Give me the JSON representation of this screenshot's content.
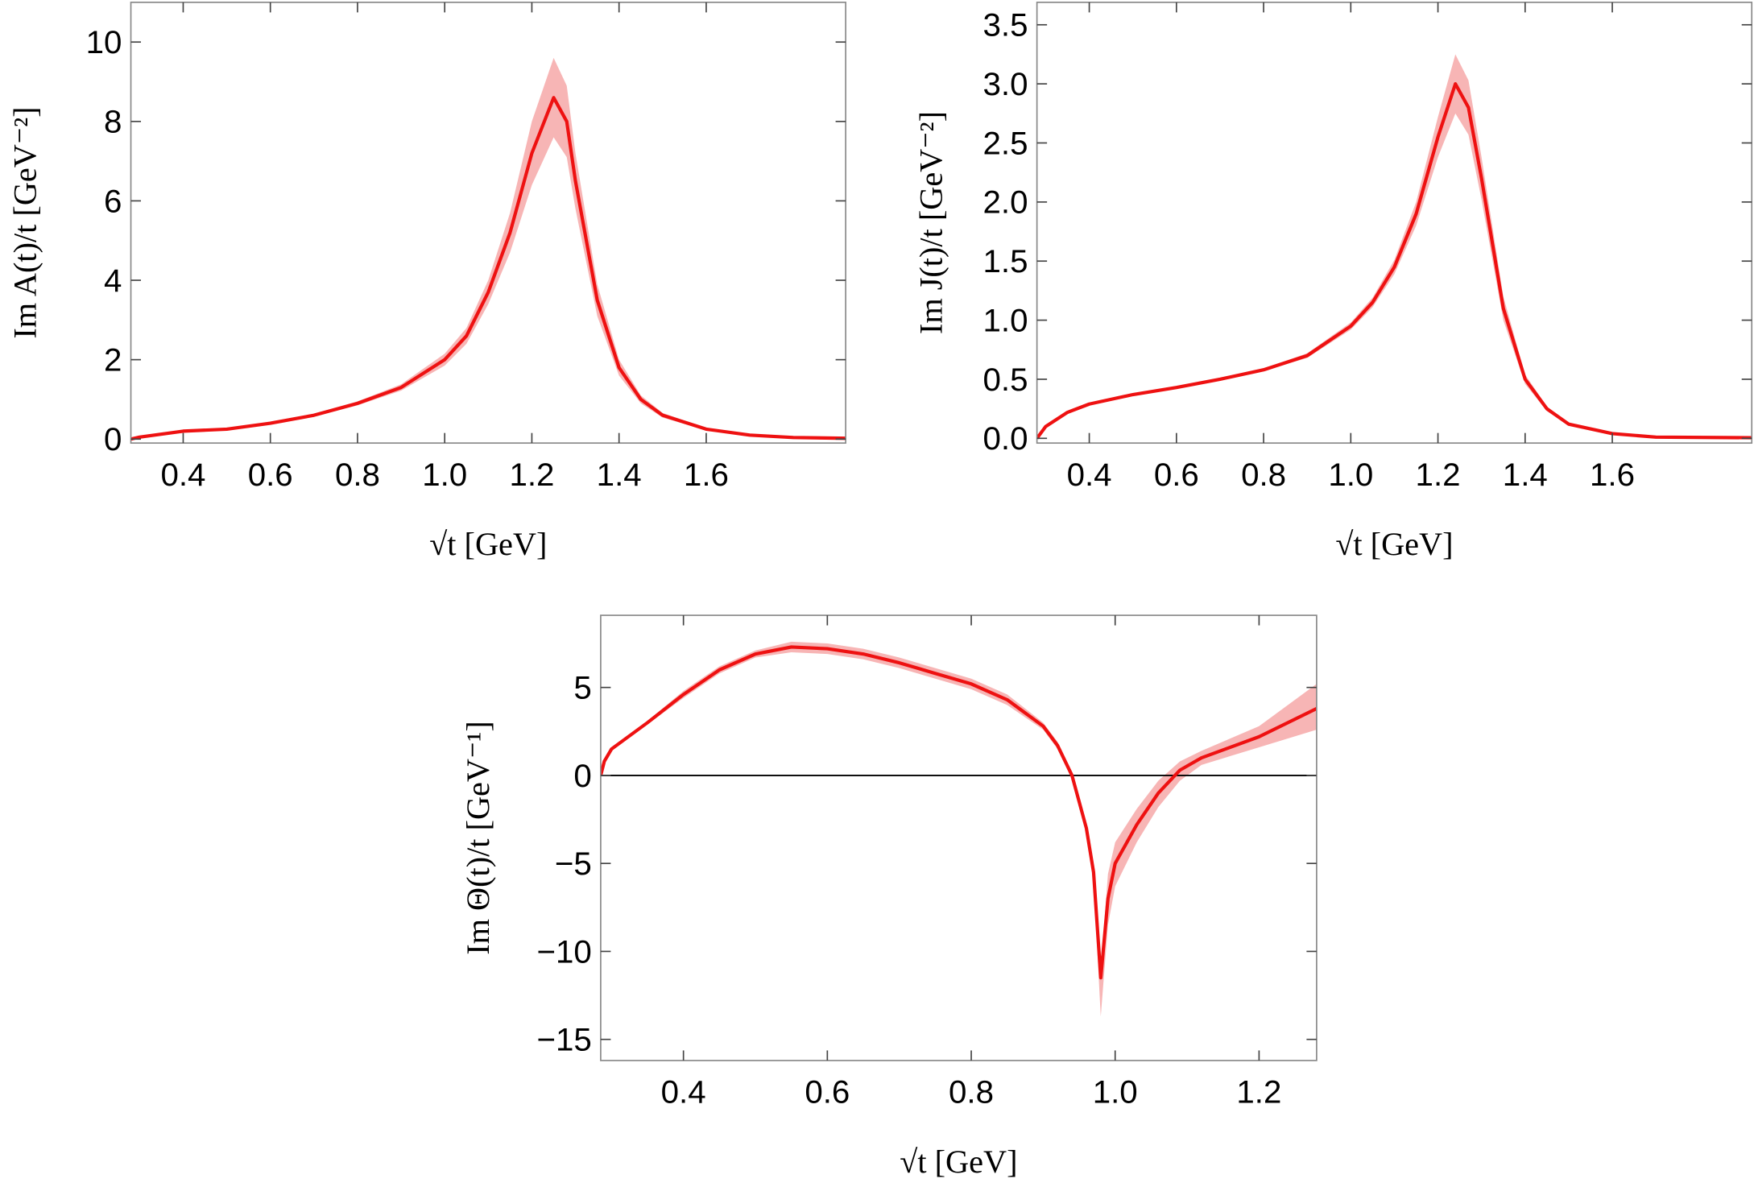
{
  "chart_data": [
    {
      "type": "line",
      "xlabel": "√t [GeV]",
      "ylabel": "Im A(t)/t [GeV⁻²]",
      "xlim": [
        0.28,
        1.92
      ],
      "ylim": [
        -0.1,
        11
      ],
      "xticks": [
        0.4,
        0.6,
        0.8,
        {
          "value": 1,
          "label": "1.0"
        },
        1.2,
        1.4,
        1.6
      ],
      "yticks": [
        0,
        2,
        4,
        6,
        8,
        10
      ],
      "x": [
        0.28,
        0.3,
        0.4,
        0.5,
        0.6,
        0.7,
        0.8,
        0.9,
        1.0,
        1.05,
        1.1,
        1.15,
        1.2,
        1.25,
        1.28,
        1.3,
        1.35,
        1.4,
        1.45,
        1.5,
        1.6,
        1.7,
        1.8,
        1.92
      ],
      "series": [
        {
          "color": "#ee1111",
          "band_color": "#f7b5b5",
          "values": [
            0,
            0.05,
            0.2,
            0.25,
            0.4,
            0.6,
            0.9,
            1.3,
            2.0,
            2.6,
            3.7,
            5.2,
            7.2,
            8.6,
            8.0,
            6.5,
            3.5,
            1.8,
            1.0,
            0.6,
            0.25,
            0.1,
            0.04,
            0.02
          ],
          "lower": [
            0,
            0.04,
            0.18,
            0.23,
            0.37,
            0.56,
            0.85,
            1.22,
            1.85,
            2.4,
            3.4,
            4.7,
            6.4,
            7.6,
            7.1,
            5.8,
            3.1,
            1.6,
            0.9,
            0.54,
            0.22,
            0.09,
            0.03,
            0.01
          ],
          "upper": [
            0,
            0.06,
            0.22,
            0.27,
            0.43,
            0.64,
            0.95,
            1.38,
            2.15,
            2.8,
            4.0,
            5.7,
            8.0,
            9.6,
            8.9,
            7.2,
            3.9,
            2.0,
            1.1,
            0.66,
            0.28,
            0.11,
            0.05,
            0.03
          ]
        }
      ]
    },
    {
      "type": "line",
      "xlabel": "√t [GeV]",
      "ylabel": "Im J(t)/t [GeV⁻²]",
      "xlim": [
        0.28,
        1.92
      ],
      "ylim": [
        -0.04,
        3.69
      ],
      "xticks": [
        0.4,
        0.6,
        0.8,
        {
          "value": 1,
          "label": "1.0"
        },
        1.2,
        1.4,
        1.6
      ],
      "yticks": [
        {
          "value": 0,
          "label": "0.0"
        },
        0.5,
        {
          "value": 1,
          "label": "1.0"
        },
        1.5,
        {
          "value": 2,
          "label": "2.0"
        },
        2.5,
        {
          "value": 3,
          "label": "3.0"
        },
        3.5
      ],
      "x": [
        0.28,
        0.3,
        0.35,
        0.4,
        0.5,
        0.6,
        0.7,
        0.8,
        0.9,
        1.0,
        1.05,
        1.1,
        1.15,
        1.2,
        1.24,
        1.27,
        1.3,
        1.35,
        1.4,
        1.45,
        1.5,
        1.6,
        1.7,
        1.92
      ],
      "series": [
        {
          "color": "#ee1111",
          "band_color": "#f7b5b5",
          "values": [
            0,
            0.1,
            0.22,
            0.29,
            0.37,
            0.43,
            0.5,
            0.58,
            0.7,
            0.95,
            1.15,
            1.45,
            1.9,
            2.55,
            3.0,
            2.8,
            2.2,
            1.1,
            0.5,
            0.25,
            0.12,
            0.04,
            0.01,
            0.005
          ],
          "lower": [
            0,
            0.09,
            0.21,
            0.28,
            0.36,
            0.42,
            0.49,
            0.57,
            0.68,
            0.92,
            1.11,
            1.39,
            1.8,
            2.38,
            2.75,
            2.57,
            2.02,
            1.0,
            0.46,
            0.23,
            0.11,
            0.035,
            0.008,
            0.004
          ],
          "upper": [
            0,
            0.11,
            0.23,
            0.3,
            0.38,
            0.44,
            0.51,
            0.59,
            0.72,
            0.98,
            1.19,
            1.51,
            2.0,
            2.72,
            3.25,
            3.03,
            2.38,
            1.2,
            0.54,
            0.27,
            0.13,
            0.045,
            0.012,
            0.006
          ]
        }
      ]
    },
    {
      "type": "line",
      "xlabel": "√t [GeV]",
      "ylabel": "Im Θ(t)/t [GeV⁻¹]",
      "xlim": [
        0.285,
        1.28
      ],
      "ylim": [
        -16.2,
        9.1
      ],
      "zero_line": true,
      "xticks": [
        0.4,
        0.6,
        0.8,
        {
          "value": 1,
          "label": "1.0"
        },
        1.2
      ],
      "yticks": [
        {
          "value": -15,
          "label": "−15"
        },
        {
          "value": -10,
          "label": "−10"
        },
        {
          "value": -5,
          "label": "−5"
        },
        0,
        5
      ],
      "x": [
        0.285,
        0.29,
        0.3,
        0.35,
        0.4,
        0.45,
        0.5,
        0.55,
        0.6,
        0.65,
        0.7,
        0.75,
        0.8,
        0.85,
        0.9,
        0.92,
        0.94,
        0.96,
        0.97,
        0.98,
        0.99,
        1.0,
        1.03,
        1.06,
        1.09,
        1.12,
        1.2,
        1.28
      ],
      "series": [
        {
          "color": "#ee1111",
          "band_color": "#f7b5b5",
          "values": [
            0,
            0.8,
            1.5,
            3.0,
            4.6,
            6.0,
            6.9,
            7.3,
            7.2,
            6.9,
            6.4,
            5.8,
            5.2,
            4.3,
            2.8,
            1.7,
            0,
            -3,
            -5.5,
            -11.5,
            -7,
            -5.0,
            -2.8,
            -1.0,
            0.3,
            1.0,
            2.2,
            3.8
          ],
          "lower": [
            0,
            0.7,
            1.4,
            2.9,
            4.4,
            5.8,
            6.7,
            7.0,
            6.9,
            6.6,
            6.1,
            5.5,
            4.9,
            4.0,
            2.6,
            1.5,
            -0.2,
            -3.3,
            -6,
            -13.7,
            -8.5,
            -6.3,
            -3.8,
            -1.8,
            -0.3,
            0.6,
            1.6,
            2.6
          ],
          "upper": [
            0,
            0.9,
            1.6,
            3.1,
            4.8,
            6.2,
            7.1,
            7.6,
            7.5,
            7.2,
            6.7,
            6.1,
            5.5,
            4.6,
            3.0,
            1.9,
            0.2,
            -2.7,
            -5.0,
            -11.0,
            -5.6,
            -3.8,
            -1.9,
            -0.3,
            0.8,
            1.4,
            2.8,
            5.2
          ]
        }
      ]
    }
  ]
}
